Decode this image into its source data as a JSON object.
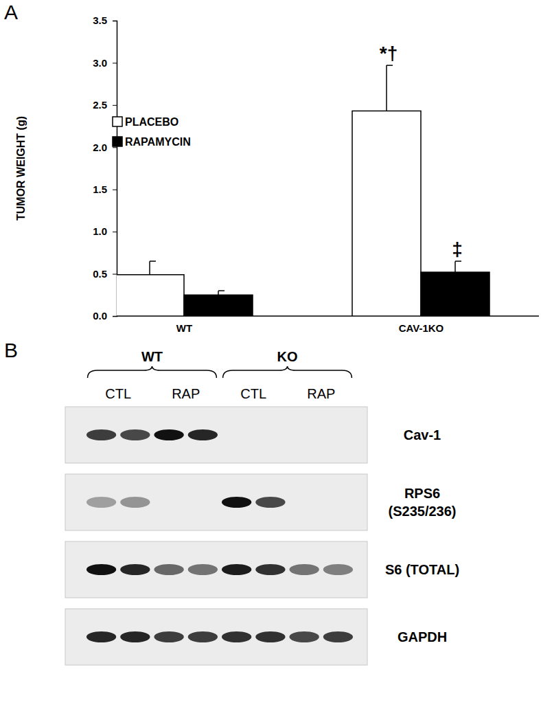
{
  "chart_data": {
    "type": "bar",
    "panel_label": "A",
    "y_label": "TUMOR WEIGHT (g)",
    "categories": [
      "WT",
      "CAV-1KO"
    ],
    "series": [
      {
        "name": "PLACEBO",
        "color": "#ffffff",
        "values": [
          0.49,
          2.43
        ],
        "errors": [
          0.16,
          0.54
        ],
        "annotations": [
          null,
          "*†"
        ]
      },
      {
        "name": "RAPAMYCIN",
        "color": "#000000",
        "values": [
          0.25,
          0.52
        ],
        "errors": [
          0.05,
          0.13
        ],
        "annotations": [
          null,
          "‡"
        ]
      }
    ],
    "ylim": [
      0,
      3.5
    ],
    "yticks": [
      {
        "value": 0,
        "label": "0.0"
      },
      0.5,
      {
        "value": 1,
        "label": "1.0"
      },
      1.5,
      {
        "value": 2,
        "label": "2.0"
      },
      2.5,
      {
        "value": 3,
        "label": "3.0"
      },
      3.5
    ],
    "legend": "upper left",
    "grid": false
  },
  "blot": {
    "panel_label": "B",
    "groups": [
      {
        "label": "WT",
        "conditions": [
          {
            "label": "CTL",
            "lanes": 2
          },
          {
            "label": "RAP",
            "lanes": 2
          }
        ]
      },
      {
        "label": "KO",
        "conditions": [
          {
            "label": "CTL",
            "lanes": 2
          },
          {
            "label": "RAP",
            "lanes": 2
          }
        ]
      }
    ],
    "rows": [
      {
        "label": [
          "Cav-1"
        ],
        "bands": [
          0.8,
          0.75,
          1.0,
          0.9,
          0,
          0,
          0,
          0
        ]
      },
      {
        "label": [
          "RPS6",
          "(S235/236)"
        ],
        "bands": [
          0.35,
          0.4,
          0,
          0,
          1.0,
          0.75,
          0,
          0
        ]
      },
      {
        "label": [
          "S6 (TOTAL)"
        ],
        "bands": [
          1.0,
          0.9,
          0.6,
          0.55,
          0.95,
          0.85,
          0.55,
          0.5
        ]
      },
      {
        "label": [
          "GAPDH"
        ],
        "bands": [
          0.9,
          0.9,
          0.8,
          0.8,
          0.85,
          0.85,
          0.75,
          0.8
        ]
      }
    ]
  }
}
